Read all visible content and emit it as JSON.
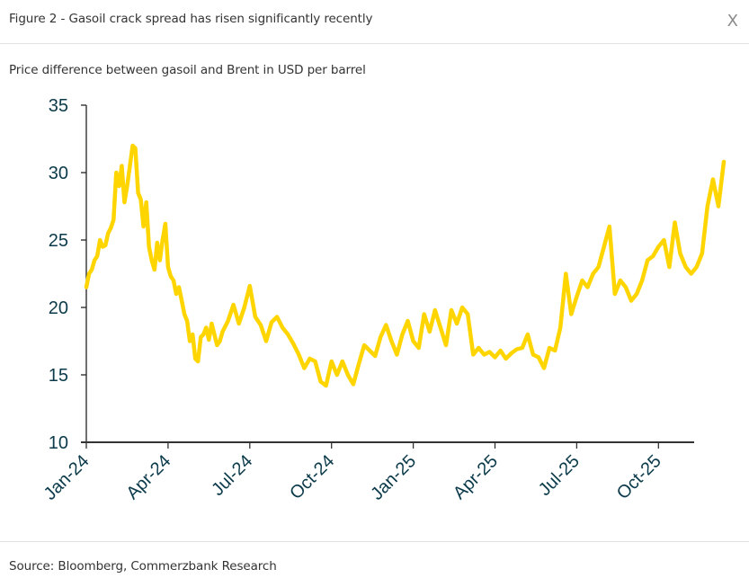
{
  "header": {
    "title": "Figure 2 - Gasoil crack spread has risen significantly recently",
    "close_label": "X"
  },
  "subtitle": "Price difference between gasoil and Brent in USD per barrel",
  "source": "Source: Bloomberg, Commerzbank Research",
  "colors": {
    "line": "#FFD500",
    "axis": "#333333",
    "tick_text": "#0B3A4A"
  },
  "chart_data": {
    "type": "line",
    "title": "Figure 2 - Gasoil crack spread has risen significantly recently",
    "subtitle": "Price difference between gasoil and Brent in USD per barrel",
    "xlabel": "",
    "ylabel": "USD per barrel",
    "ylim": [
      10,
      35
    ],
    "yticks": [
      10,
      15,
      20,
      25,
      30,
      35
    ],
    "xticks": [
      "Jan-24",
      "Apr-24",
      "Jul-24",
      "Oct-24",
      "Jan-25",
      "Apr-25",
      "Jul-25",
      "Oct-25"
    ],
    "xrange_months": [
      0,
      23.45
    ],
    "grid": false,
    "legend": "none",
    "series": [
      {
        "name": "Gasoil crack spread",
        "x_months": [
          0.0,
          0.1,
          0.2,
          0.3,
          0.4,
          0.5,
          0.6,
          0.7,
          0.8,
          0.9,
          1.0,
          1.1,
          1.2,
          1.3,
          1.4,
          1.5,
          1.6,
          1.7,
          1.8,
          1.9,
          2.0,
          2.1,
          2.2,
          2.3,
          2.4,
          2.5,
          2.6,
          2.7,
          2.8,
          2.9,
          3.0,
          3.1,
          3.2,
          3.3,
          3.4,
          3.5,
          3.6,
          3.7,
          3.8,
          3.9,
          4.0,
          4.1,
          4.2,
          4.3,
          4.4,
          4.5,
          4.6,
          4.7,
          4.8,
          4.9,
          5.0,
          5.2,
          5.4,
          5.6,
          5.8,
          6.0,
          6.2,
          6.4,
          6.6,
          6.8,
          7.0,
          7.2,
          7.4,
          7.6,
          7.8,
          8.0,
          8.2,
          8.4,
          8.6,
          8.8,
          9.0,
          9.2,
          9.4,
          9.6,
          9.8,
          10.0,
          10.2,
          10.4,
          10.6,
          10.8,
          11.0,
          11.2,
          11.4,
          11.6,
          11.8,
          12.0,
          12.2,
          12.4,
          12.6,
          12.8,
          13.0,
          13.2,
          13.4,
          13.6,
          13.8,
          14.0,
          14.2,
          14.4,
          14.6,
          14.8,
          15.0,
          15.2,
          15.4,
          15.6,
          15.8,
          16.0,
          16.2,
          16.4,
          16.6,
          16.8,
          17.0,
          17.2,
          17.4,
          17.6,
          17.8,
          18.0,
          18.2,
          18.4,
          18.6,
          18.8,
          19.0,
          19.2,
          19.4,
          19.6,
          19.8,
          20.0,
          20.2,
          20.4,
          20.6,
          20.8,
          21.0,
          21.2,
          21.4,
          21.6,
          21.8,
          22.0,
          22.2,
          22.4,
          22.6,
          22.8,
          23.0,
          23.2,
          23.4
        ],
        "values": [
          21.5,
          22.5,
          22.8,
          23.5,
          23.8,
          25.0,
          24.5,
          24.6,
          25.5,
          25.9,
          26.5,
          30.0,
          29.0,
          30.5,
          27.8,
          29.0,
          30.5,
          32.0,
          31.8,
          28.5,
          28.0,
          26.0,
          27.8,
          24.5,
          23.5,
          22.8,
          24.8,
          23.5,
          25.0,
          26.2,
          23.0,
          22.3,
          22.0,
          21.0,
          21.5,
          20.5,
          19.5,
          19.0,
          17.5,
          18.0,
          16.2,
          16.0,
          17.8,
          18.0,
          18.5,
          17.6,
          18.8,
          18.0,
          17.2,
          17.5,
          18.2,
          19.0,
          20.2,
          18.8,
          20.0,
          21.6,
          19.3,
          18.7,
          17.5,
          18.9,
          19.3,
          18.5,
          18.0,
          17.3,
          16.5,
          15.5,
          16.2,
          16.0,
          14.5,
          14.2,
          16.0,
          15.0,
          16.0,
          15.0,
          14.3,
          15.8,
          17.2,
          16.8,
          16.4,
          17.8,
          18.7,
          17.5,
          16.5,
          18.0,
          19.0,
          17.5,
          17.0,
          19.5,
          18.2,
          19.8,
          18.5,
          17.2,
          19.8,
          18.8,
          20.0,
          19.5,
          16.5,
          17.0,
          16.5,
          16.7,
          16.3,
          16.8,
          16.2,
          16.6,
          16.9,
          17.0,
          18.0,
          16.5,
          16.3,
          15.5,
          17.0,
          16.8,
          18.5,
          22.5,
          19.5,
          20.8,
          22.0,
          21.5,
          22.5,
          23.0,
          24.5,
          26.0,
          21.0,
          22.0,
          21.5,
          20.5,
          21.0,
          22.0,
          23.5,
          23.8,
          24.5,
          25.0,
          23.0,
          26.3,
          24.0,
          23.0,
          22.5,
          23.0,
          24.0,
          27.5,
          29.5,
          27.5,
          30.8,
          31.0
        ]
      }
    ]
  }
}
